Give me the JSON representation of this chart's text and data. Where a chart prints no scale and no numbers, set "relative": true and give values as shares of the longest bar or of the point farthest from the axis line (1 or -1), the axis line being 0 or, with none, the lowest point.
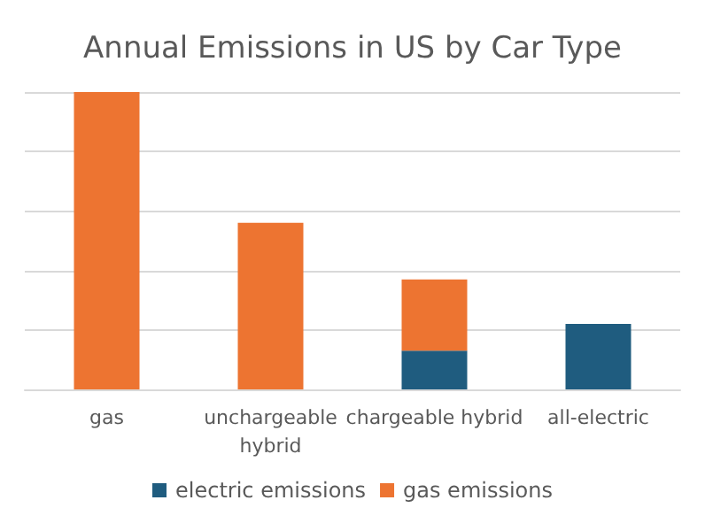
{
  "chart_data": {
    "type": "bar",
    "title": "Annual Emissions in US by Car Type",
    "categories": [
      "gas",
      "unchargeable\nhybrid",
      "chargeable hybrid",
      "all-electric"
    ],
    "stacked": true,
    "relative": true,
    "grid": "y",
    "legend": "bottom",
    "series": [
      {
        "name": "electric emissions",
        "color": "#1f5c7f",
        "values": [
          0,
          0,
          0.13,
          0.22
        ]
      },
      {
        "name": "gas emissions",
        "color": "#ed7431",
        "values": [
          1,
          0.56,
          0.24,
          null
        ]
      }
    ]
  }
}
